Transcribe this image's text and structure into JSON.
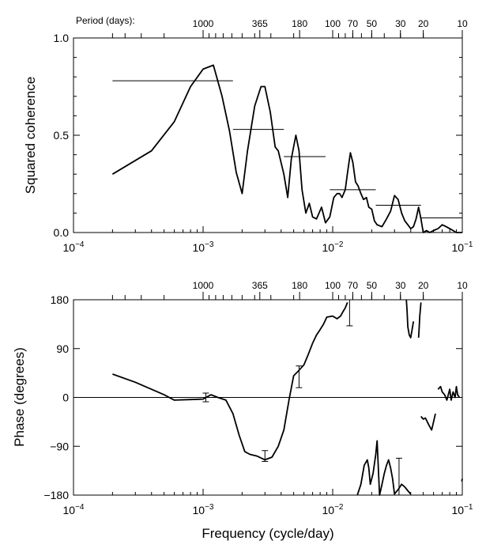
{
  "chart_data": [
    {
      "type": "line",
      "title": "",
      "top_axis_label": "Period (days):",
      "top_axis_ticks": [
        "1000",
        "365",
        "180",
        "100",
        "70",
        "50",
        "30",
        "20",
        "10"
      ],
      "top_axis_tick_periods": [
        1000,
        365,
        180,
        100,
        70,
        50,
        30,
        20,
        10
      ],
      "xlabel": "",
      "ylabel": "Squared coherence",
      "xscale": "log",
      "xlim": [
        0.0001,
        0.1
      ],
      "ylim": [
        0,
        1
      ],
      "x_tick_labels": [
        "10−4",
        "10−3",
        "10−2",
        "10−1"
      ],
      "x_tick_values": [
        0.0001,
        0.001,
        0.01,
        0.1
      ],
      "y_tick_labels": [
        "0.0",
        "0.5",
        "1.0"
      ],
      "y_tick_values": [
        0,
        0.5,
        1.0
      ],
      "series": [
        {
          "x": [
            0.0002,
            0.0004,
            0.0006,
            0.0008,
            0.001,
            0.0012,
            0.0014,
            0.0016,
            0.0018,
            0.002,
            0.0022,
            0.0025,
            0.0028,
            0.003,
            0.0033,
            0.0036,
            0.0038,
            0.0042,
            0.0045,
            0.0048,
            0.0052,
            0.0055,
            0.0058,
            0.0062,
            0.0066,
            0.007,
            0.0075,
            0.0082,
            0.0088,
            0.0095,
            0.0102,
            0.0108,
            0.0113,
            0.0118,
            0.0125,
            0.0131,
            0.0137,
            0.0143,
            0.015,
            0.0157,
            0.0165,
            0.0173,
            0.0182,
            0.019,
            0.02,
            0.021,
            0.022,
            0.024,
            0.026,
            0.028,
            0.03,
            0.032,
            0.034,
            0.036,
            0.038,
            0.04,
            0.042,
            0.044,
            0.046,
            0.048,
            0.05,
            0.053,
            0.056,
            0.06,
            0.065,
            0.07,
            0.075,
            0.08,
            0.085,
            0.09,
            0.095,
            0.1
          ],
          "y": [
            0.3,
            0.42,
            0.57,
            0.75,
            0.84,
            0.86,
            0.7,
            0.52,
            0.31,
            0.2,
            0.42,
            0.65,
            0.75,
            0.75,
            0.62,
            0.44,
            0.42,
            0.3,
            0.18,
            0.38,
            0.5,
            0.42,
            0.22,
            0.1,
            0.15,
            0.08,
            0.07,
            0.13,
            0.05,
            0.08,
            0.18,
            0.2,
            0.2,
            0.18,
            0.22,
            0.32,
            0.41,
            0.36,
            0.26,
            0.24,
            0.2,
            0.17,
            0.18,
            0.13,
            0.12,
            0.06,
            0.04,
            0.03,
            0.07,
            0.11,
            0.19,
            0.17,
            0.1,
            0.06,
            0.04,
            0.02,
            0.03,
            0.07,
            0.13,
            0.07,
            0.0,
            0.01,
            0.0,
            0.01,
            0.02,
            0.04,
            0.03,
            0.02,
            0.01,
            0.0,
            0.0,
            0.0
          ]
        }
      ],
      "segments": [
        {
          "x": [
            0.0002,
            0.0017
          ],
          "y": 0.78
        },
        {
          "x": [
            0.0017,
            0.0042
          ],
          "y": 0.53
        },
        {
          "x": [
            0.0042,
            0.0088
          ],
          "y": 0.39
        },
        {
          "x": [
            0.0095,
            0.0215
          ],
          "y": 0.22
        },
        {
          "x": [
            0.0215,
            0.048
          ],
          "y": 0.14
        },
        {
          "x": [
            0.048,
            0.1
          ],
          "y": 0.075
        }
      ]
    },
    {
      "type": "line",
      "title": "",
      "top_axis_ticks": [
        "1000",
        "365",
        "180",
        "100",
        "70",
        "50",
        "30",
        "20",
        "10"
      ],
      "top_axis_tick_periods": [
        1000,
        365,
        180,
        100,
        70,
        50,
        30,
        20,
        10
      ],
      "xlabel": "Frequency (cycle/day)",
      "ylabel": "Phase (degrees)",
      "xscale": "log",
      "xlim": [
        0.0001,
        0.1
      ],
      "ylim": [
        -180,
        180
      ],
      "x_tick_labels": [
        "10−4",
        "10−3",
        "10−2",
        "10−1"
      ],
      "x_tick_values": [
        0.0001,
        0.001,
        0.01,
        0.1
      ],
      "y_tick_labels": [
        "−180",
        "−90",
        "0",
        "90",
        "180"
      ],
      "y_tick_values": [
        -180,
        -90,
        0,
        90,
        180
      ],
      "reference_lines": [
        0,
        180
      ],
      "series": [
        {
          "segment": 1,
          "x": [
            0.0002,
            0.0003,
            0.0004,
            0.0005,
            0.0006,
            0.0008,
            0.001,
            0.00115,
            0.0013,
            0.0015,
            0.0017,
            0.0019,
            0.0021,
            0.0023,
            0.0026,
            0.003,
            0.0034,
            0.0038,
            0.0042,
            0.0046,
            0.005,
            0.0055,
            0.006,
            0.0065,
            0.007,
            0.0075,
            0.008,
            0.0085,
            0.009,
            0.01,
            0.0108,
            0.0115,
            0.012,
            0.0125,
            0.013
          ],
          "y": [
            43,
            28,
            15,
            5,
            -5,
            -4,
            -3,
            5,
            0,
            -5,
            -30,
            -70,
            -100,
            -105,
            -108,
            -115,
            -110,
            -90,
            -60,
            -5,
            40,
            50,
            60,
            80,
            100,
            115,
            125,
            135,
            148,
            150,
            145,
            150,
            158,
            165,
            175
          ]
        },
        {
          "segment": 2,
          "x": [
            0.0155,
            0.0165,
            0.0175,
            0.0185,
            0.019,
            0.0195,
            0.0205,
            0.0215,
            0.022,
            0.023,
            0.024,
            0.025,
            0.026,
            0.027,
            0.028,
            0.029,
            0.03,
            0.032,
            0.034,
            0.036,
            0.038,
            0.04
          ],
          "y": [
            -180,
            -160,
            -125,
            -115,
            -130,
            -160,
            -140,
            -105,
            -80,
            -180,
            -160,
            -140,
            -125,
            -115,
            -130,
            -150,
            -178,
            -170,
            -160,
            -165,
            -172,
            -178
          ]
        },
        {
          "segment": 3,
          "x": [
            0.037,
            0.0375,
            0.038,
            0.039,
            0.04,
            0.041,
            0.042
          ],
          "y": [
            180,
            160,
            130,
            115,
            110,
            125,
            140
          ]
        },
        {
          "segment": 4,
          "x": [
            0.046,
            0.0465,
            0.047,
            0.048
          ],
          "y": [
            110,
            130,
            150,
            175
          ]
        },
        {
          "segment": 5,
          "x": [
            0.048,
            0.05,
            0.052,
            0.055,
            0.058,
            0.06,
            0.062
          ],
          "y": [
            -35,
            -40,
            -38,
            -50,
            -60,
            -45,
            -30
          ]
        },
        {
          "segment": 6,
          "x": [
            0.065,
            0.068,
            0.07,
            0.073,
            0.076,
            0.08,
            0.082,
            0.085,
            0.088,
            0.09,
            0.092,
            0.095
          ],
          "y": [
            15,
            20,
            10,
            5,
            -5,
            15,
            -5,
            10,
            0,
            20,
            5,
            0
          ]
        },
        {
          "segment": 7,
          "x": [
            0.099,
            0.1
          ],
          "y": [
            -155,
            -150
          ]
        }
      ],
      "error_bars": [
        {
          "x": 0.00105,
          "y": 0,
          "low": -8,
          "high": 8
        },
        {
          "x": 0.003,
          "y": -108,
          "low": -118,
          "high": -98
        },
        {
          "x": 0.0055,
          "y": 38,
          "low": 18,
          "high": 58
        },
        {
          "x": 0.0135,
          "y": 158,
          "low": 132,
          "high": 184
        },
        {
          "x": 0.0325,
          "y": -150,
          "low": -186,
          "high": -112
        }
      ],
      "legend": null
    }
  ]
}
